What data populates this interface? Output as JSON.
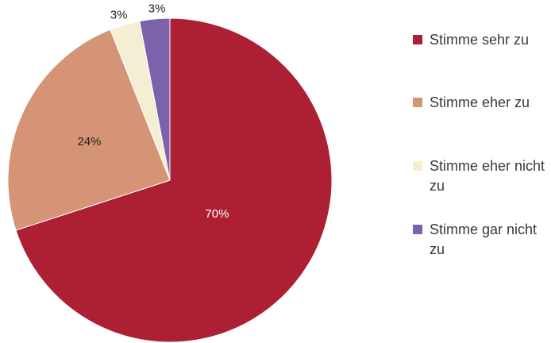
{
  "chart_data": {
    "type": "pie",
    "title": "",
    "slices": [
      {
        "name": "Stimme sehr zu",
        "value": 70,
        "label": "70%",
        "color": "#ad1f33"
      },
      {
        "name": "Stimme eher zu",
        "value": 24,
        "label": "24%",
        "color": "#d49475"
      },
      {
        "name": "Stimme eher nicht zu",
        "value": 3,
        "label": "3%",
        "color": "#f4efd2"
      },
      {
        "name": "Stimme gar nicht zu",
        "value": 3,
        "label": "3%",
        "color": "#7b62aa"
      }
    ],
    "legend": {
      "position": "right",
      "items": [
        {
          "label": "Stimme sehr zu",
          "color": "#ad1f33"
        },
        {
          "label": "Stimme eher zu",
          "color": "#d49475"
        },
        {
          "label": "Stimme eher nicht zu",
          "color": "#f4efd2"
        },
        {
          "label": "Stimme gar nicht zu",
          "color": "#7b62aa"
        }
      ]
    }
  }
}
